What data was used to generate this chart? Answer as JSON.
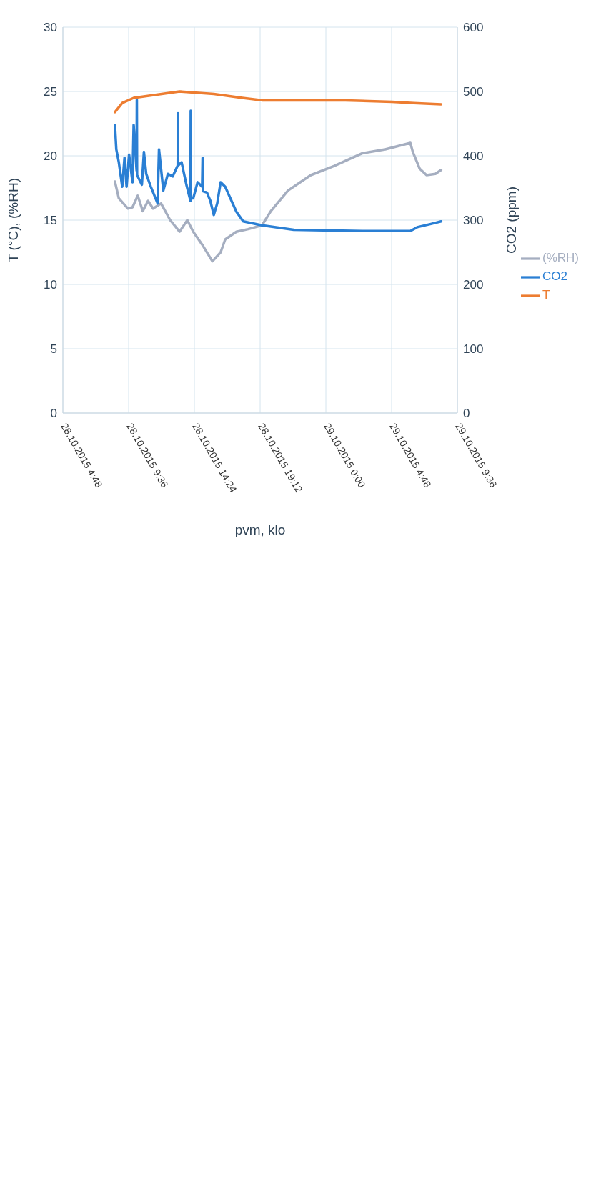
{
  "chart_data": {
    "type": "line",
    "xlabel": "pvm, klo",
    "ylabel": "T (°C), (%RH)",
    "y2label": "CO2 (ppm)",
    "xlim": [
      "2015-10-28T04:48",
      "2015-10-29T09:36"
    ],
    "xticks": [
      {
        "value": "2015-10-28T04:48",
        "label": "28.10.2015 4:48"
      },
      {
        "value": "2015-10-28T09:36",
        "label": "28.10.2015 9:36"
      },
      {
        "value": "2015-10-28T14:24",
        "label": "28.10.2015 14:24"
      },
      {
        "value": "2015-10-28T19:12",
        "label": "28.10.2015 19:12"
      },
      {
        "value": "2015-10-29T00:00",
        "label": "29.10.2015 0:00"
      },
      {
        "value": "2015-10-29T04:48",
        "label": "29.10.2015 4:48"
      },
      {
        "value": "2015-10-29T09:36",
        "label": "29.10.2015 9:36"
      }
    ],
    "ylim": [
      0,
      30
    ],
    "yticks": [
      0,
      5,
      10,
      15,
      20,
      25,
      30
    ],
    "y2lim": [
      0,
      600
    ],
    "y2ticks": [
      0,
      100,
      200,
      300,
      400,
      500,
      600
    ],
    "grid": true,
    "legend": "right",
    "series": [
      {
        "name": "T",
        "color": "#ed7d31",
        "x": [
          "2015-10-28T08:36",
          "2015-10-28T09:08",
          "2015-10-28T09:58",
          "2015-10-28T13:19",
          "2015-10-28T15:49",
          "2015-10-28T17:54",
          "2015-10-28T19:24",
          "2015-10-29T01:25",
          "2015-10-29T04:50",
          "2015-10-29T06:25",
          "2015-10-29T08:25"
        ],
        "values": [
          23.4,
          24.1,
          24.5,
          25.0,
          24.8,
          24.5,
          24.3,
          24.3,
          24.2,
          24.1,
          24.0
        ]
      },
      {
        "name": "(%RH)",
        "color": "#a5aec0",
        "x": [
          "2015-10-28T08:36",
          "2015-10-28T08:53",
          "2015-10-28T09:33",
          "2015-10-28T09:53",
          "2015-10-28T10:16",
          "2015-10-28T10:38",
          "2015-10-28T11:01",
          "2015-10-28T11:23",
          "2015-10-28T11:58",
          "2015-10-28T12:38",
          "2015-10-28T13:19",
          "2015-10-28T13:53",
          "2015-10-28T14:19",
          "2015-10-28T14:58",
          "2015-10-28T15:43",
          "2015-10-28T16:19",
          "2015-10-28T16:39",
          "2015-10-28T17:28",
          "2015-10-28T18:19",
          "2015-10-28T19:20",
          "2015-10-28T19:59",
          "2015-10-28T21:14",
          "2015-10-28T22:54",
          "2015-10-29T00:35",
          "2015-10-29T02:40",
          "2015-10-29T04:20",
          "2015-10-29T06:10",
          "2015-10-29T06:21",
          "2015-10-29T06:51",
          "2015-10-29T07:21",
          "2015-10-29T08:00",
          "2015-10-29T08:25"
        ],
        "values": [
          18.0,
          16.7,
          15.9,
          16.0,
          16.9,
          15.7,
          16.5,
          15.9,
          16.3,
          15.0,
          14.1,
          15.0,
          14.1,
          13.1,
          11.8,
          12.5,
          13.5,
          14.1,
          14.3,
          14.6,
          15.7,
          17.3,
          18.5,
          19.2,
          20.2,
          20.5,
          21.0,
          20.3,
          19.0,
          18.5,
          18.6,
          18.9
        ]
      },
      {
        "name": "CO2",
        "color": "#2a7fd4",
        "axis": "y2",
        "x": [
          "2015-10-28T08:36",
          "2015-10-28T08:42",
          "2015-10-28T08:53",
          "2015-10-28T09:08",
          "2015-10-28T09:18",
          "2015-10-28T09:27",
          "2015-10-28T09:38",
          "2015-10-28T09:53",
          "2015-10-28T09:58",
          "2015-10-28T10:11",
          "2015-10-28T10:12",
          "2015-10-28T10:13",
          "2015-10-28T10:34",
          "2015-10-28T10:43",
          "2015-10-28T10:53",
          "2015-10-28T11:13",
          "2015-10-28T11:43",
          "2015-10-28T11:49",
          "2015-10-28T12:08",
          "2015-10-28T12:28",
          "2015-10-28T12:49",
          "2015-10-28T13:11",
          "2015-10-28T13:12",
          "2015-10-28T13:13",
          "2015-10-28T13:28",
          "2015-10-28T13:49",
          "2015-10-28T14:07",
          "2015-10-28T14:08",
          "2015-10-28T14:09",
          "2015-10-28T14:19",
          "2015-10-28T14:38",
          "2015-10-28T14:58",
          "2015-10-28T15:00",
          "2015-10-28T15:02",
          "2015-10-28T15:19",
          "2015-10-28T15:34",
          "2015-10-28T15:49",
          "2015-10-28T16:04",
          "2015-10-28T16:19",
          "2015-10-28T16:39",
          "2015-10-28T17:28",
          "2015-10-28T17:58",
          "2015-10-28T19:20",
          "2015-10-28T21:39",
          "2015-10-29T02:40",
          "2015-10-29T04:20",
          "2015-10-29T06:10",
          "2015-10-29T06:40",
          "2015-10-29T07:40",
          "2015-10-29T08:25"
        ],
        "values": [
          448,
          410,
          390,
          352,
          397,
          352,
          402,
          359,
          448,
          377,
          487,
          370,
          355,
          406,
          372,
          352,
          326,
          410,
          346,
          372,
          368,
          385,
          466,
          385,
          390,
          355,
          330,
          470,
          334,
          334,
          359,
          352,
          397,
          345,
          343,
          330,
          308,
          326,
          359,
          352,
          313,
          298,
          292,
          285,
          283,
          283,
          283,
          289,
          294,
          298
        ]
      }
    ]
  }
}
